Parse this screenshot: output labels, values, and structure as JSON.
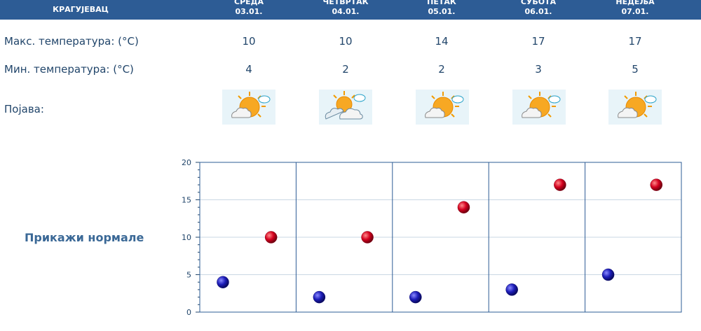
{
  "header": {
    "city": "КРАГУЈЕВАЦ",
    "days": [
      {
        "name": "СРЕДА",
        "date": "03.01."
      },
      {
        "name": "ЧЕТВРТАК",
        "date": "04.01."
      },
      {
        "name": "ПЕТАК",
        "date": "05.01."
      },
      {
        "name": "СУБОТА",
        "date": "06.01."
      },
      {
        "name": "НЕДЕЉА",
        "date": "07.01."
      }
    ]
  },
  "rows": {
    "max_label": "Макс. температура: (°C)",
    "min_label": "Мин. температура: (°C)",
    "phenomenon_label": "Појава:",
    "max": [
      "10",
      "10",
      "14",
      "17",
      "17"
    ],
    "min": [
      "4",
      "2",
      "2",
      "3",
      "5"
    ],
    "icons": [
      "sun-cloud-icon",
      "cloud-sun-icon",
      "sun-cloud-icon",
      "sun-cloud-icon",
      "sun-cloud-icon"
    ]
  },
  "normals_link": "Прикажи нормале",
  "colors": {
    "header": "#2d5c95",
    "text": "#22466b",
    "max_point": "#c8001e",
    "min_point": "#1c1ca8"
  },
  "chart_data": {
    "type": "scatter",
    "categories": [
      "03.01.",
      "04.01.",
      "05.01.",
      "06.01.",
      "07.01."
    ],
    "series": [
      {
        "values": [
          4,
          2,
          2,
          3,
          5
        ],
        "color": "#1c1ca8"
      },
      {
        "values": [
          10,
          10,
          14,
          17,
          17
        ],
        "color": "#c8001e"
      }
    ],
    "ylim": [
      0,
      20
    ],
    "yticks": [
      "0",
      "5",
      "10",
      "15",
      "20"
    ],
    "grid": true
  }
}
